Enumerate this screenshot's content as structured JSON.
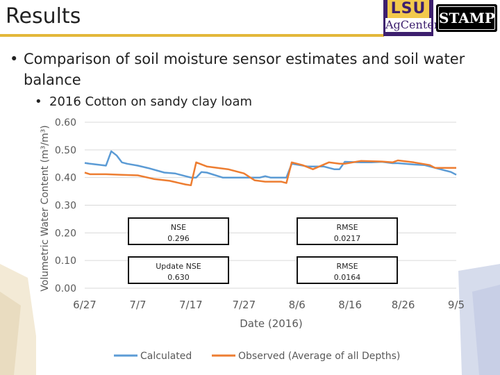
{
  "header": {
    "title": "Results",
    "logo_lsu_text": "LSU",
    "logo_agcenter_text": "AgCenter",
    "logo_stamp_text": "STAMP"
  },
  "bullets": {
    "level1": "Comparison of soil moisture sensor estimates and soil water balance",
    "level2": "2016 Cotton on sandy clay loam"
  },
  "stats": {
    "nse_label": "NSE",
    "nse_value": "0.296",
    "rmse_label": "RMSE",
    "rmse_value": "0.0217",
    "update_nse_label": "Update NSE",
    "update_nse_value": "0.630",
    "rmse2_label": "RMSE",
    "rmse2_value": "0.0164"
  },
  "colors": {
    "calculated": "#5b9bd5",
    "observed": "#ed7d31",
    "title_rule": "#e3b73a"
  },
  "chart_data": {
    "type": "line",
    "xlabel": "Date (2016)",
    "ylabel": "Volumetric Water Content (m³/m³)",
    "ylim": [
      0,
      0.6
    ],
    "yticks": [
      "0.00",
      "0.10",
      "0.20",
      "0.30",
      "0.40",
      "0.50",
      "0.60"
    ],
    "xlim": [
      "2016-06-27",
      "2016-09-05"
    ],
    "xticks": [
      "6/27",
      "7/7",
      "7/17",
      "7/27",
      "8/6",
      "8/16",
      "8/26",
      "9/5"
    ],
    "grid": true,
    "legend": "bottom",
    "series": [
      {
        "name": "Calculated",
        "x": [
          "2016-06-27",
          "2016-06-28",
          "2016-07-01",
          "2016-07-02",
          "2016-07-03",
          "2016-07-04",
          "2016-07-05",
          "2016-07-07",
          "2016-07-09",
          "2016-07-12",
          "2016-07-14",
          "2016-07-17",
          "2016-07-18",
          "2016-07-19",
          "2016-07-20",
          "2016-07-23",
          "2016-07-25",
          "2016-07-27",
          "2016-07-30",
          "2016-07-31",
          "2016-08-01",
          "2016-08-03",
          "2016-08-04",
          "2016-08-05",
          "2016-08-08",
          "2016-08-11",
          "2016-08-13",
          "2016-08-14",
          "2016-08-15",
          "2016-08-18",
          "2016-08-20",
          "2016-08-22",
          "2016-08-24",
          "2016-08-25",
          "2016-08-28",
          "2016-08-30",
          "2016-09-01",
          "2016-09-04",
          "2016-09-05"
        ],
        "y": [
          0.453,
          0.45,
          0.443,
          0.495,
          0.48,
          0.455,
          0.45,
          0.443,
          0.434,
          0.418,
          0.415,
          0.4,
          0.4,
          0.42,
          0.418,
          0.4,
          0.4,
          0.4,
          0.4,
          0.405,
          0.4,
          0.4,
          0.4,
          0.45,
          0.44,
          0.44,
          0.43,
          0.43,
          0.457,
          0.455,
          0.455,
          0.457,
          0.452,
          0.452,
          0.447,
          0.445,
          0.435,
          0.42,
          0.41
        ]
      },
      {
        "name": "Observed (Average of all Depths)",
        "x": [
          "2016-06-27",
          "2016-06-28",
          "2016-07-01",
          "2016-07-04",
          "2016-07-07",
          "2016-07-10",
          "2016-07-13",
          "2016-07-16",
          "2016-07-17",
          "2016-07-18",
          "2016-07-20",
          "2016-07-24",
          "2016-07-27",
          "2016-07-29",
          "2016-07-31",
          "2016-08-03",
          "2016-08-04",
          "2016-08-05",
          "2016-08-07",
          "2016-08-09",
          "2016-08-12",
          "2016-08-14",
          "2016-08-15",
          "2016-08-18",
          "2016-08-22",
          "2016-08-24",
          "2016-08-25",
          "2016-08-28",
          "2016-08-31",
          "2016-09-01",
          "2016-09-04",
          "2016-09-05"
        ],
        "y": [
          0.418,
          0.412,
          0.412,
          0.41,
          0.408,
          0.395,
          0.388,
          0.375,
          0.372,
          0.455,
          0.44,
          0.43,
          0.415,
          0.39,
          0.385,
          0.385,
          0.38,
          0.455,
          0.445,
          0.43,
          0.455,
          0.45,
          0.45,
          0.46,
          0.458,
          0.455,
          0.462,
          0.455,
          0.445,
          0.435,
          0.435,
          0.435
        ]
      }
    ]
  }
}
